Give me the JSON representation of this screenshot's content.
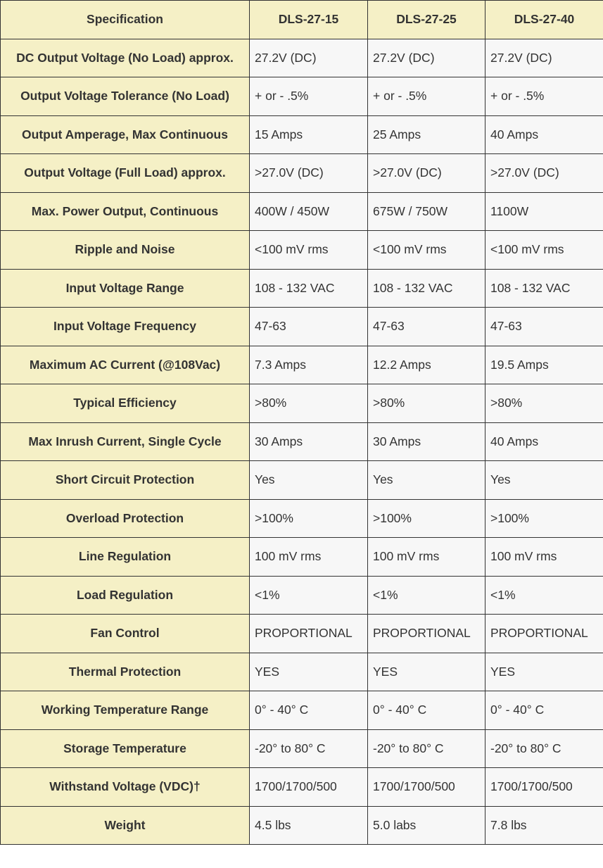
{
  "table": {
    "headers": [
      "Specification",
      "DLS-27-15",
      "DLS-27-25",
      "DLS-27-40"
    ],
    "rows": [
      [
        "DC Output Voltage (No Load) approx.",
        "27.2V (DC)",
        "27.2V (DC)",
        "27.2V (DC)"
      ],
      [
        "Output Voltage Tolerance (No Load)",
        "+ or - .5%",
        "+ or - .5%",
        "+ or - .5%"
      ],
      [
        "Output Amperage, Max Continuous",
        "15 Amps",
        "25 Amps",
        "40 Amps"
      ],
      [
        "Output Voltage (Full Load) approx.",
        ">27.0V (DC)",
        ">27.0V (DC)",
        ">27.0V (DC)"
      ],
      [
        "Max. Power Output, Continuous",
        "400W / 450W",
        "675W / 750W",
        "1100W"
      ],
      [
        "Ripple and Noise",
        "<100 mV rms",
        "<100 mV rms",
        "<100 mV rms"
      ],
      [
        "Input Voltage Range",
        "108 - 132 VAC",
        "108 - 132 VAC",
        "108 - 132 VAC"
      ],
      [
        "Input Voltage Frequency",
        "47-63",
        "47-63",
        "47-63"
      ],
      [
        "Maximum AC Current (@108Vac)",
        "7.3 Amps",
        "12.2 Amps",
        "19.5 Amps"
      ],
      [
        "Typical Efficiency",
        ">80%",
        ">80%",
        ">80%"
      ],
      [
        "Max Inrush Current, Single Cycle",
        "30 Amps",
        "30 Amps",
        "40 Amps"
      ],
      [
        "Short Circuit Protection",
        "Yes",
        "Yes",
        "Yes"
      ],
      [
        "Overload Protection",
        ">100%",
        ">100%",
        ">100%"
      ],
      [
        "Line Regulation",
        "100 mV rms",
        "100 mV rms",
        "100 mV rms"
      ],
      [
        "Load Regulation",
        "<1%",
        "<1%",
        "<1%"
      ],
      [
        "Fan Control",
        "PROPORTIONAL",
        "PROPORTIONAL",
        "PROPORTIONAL"
      ],
      [
        "Thermal Protection",
        "YES",
        "YES",
        "YES"
      ],
      [
        "Working Temperature Range",
        "0° - 40° C",
        "0° - 40° C",
        "0° - 40° C"
      ],
      [
        "Storage Temperature",
        "-20° to 80° C",
        "-20° to 80° C",
        "-20° to 80° C"
      ],
      [
        "Withstand Voltage (VDC)†",
        "1700/1700/500",
        "1700/1700/500",
        "1700/1700/500"
      ],
      [
        "Weight",
        "4.5 lbs",
        "5.0 labs",
        "7.8 lbs"
      ]
    ]
  },
  "colors": {
    "header_bg": "#f5f0c6",
    "cell_bg": "#f7f7f7",
    "border": "#333333",
    "text": "#333333"
  }
}
